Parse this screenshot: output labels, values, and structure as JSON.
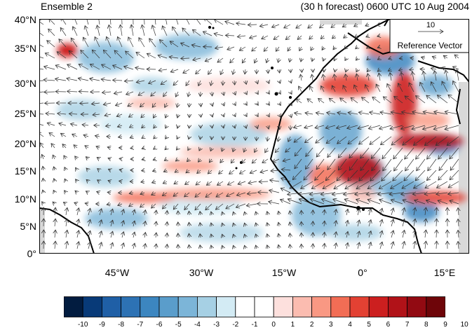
{
  "header": {
    "title_left": "Ensemble 2",
    "title_right": "(30 h forecast) 0600 UTC 10 Aug 2004"
  },
  "axes": {
    "y_ticks": [
      "40°N",
      "35°N",
      "30°N",
      "25°N",
      "20°N",
      "15°N",
      "10°N",
      "5°N",
      "0°"
    ],
    "x_ticks": [
      "45°W",
      "30°W",
      "15°W",
      "0°",
      "15°E"
    ]
  },
  "reference_vector": {
    "value": "10",
    "label": "Reference Vector"
  },
  "colorbar": {
    "labels": [
      "-10",
      "-9",
      "-8",
      "-7",
      "-6",
      "-5",
      "-4",
      "-3",
      "-2",
      "-1",
      "0",
      "1",
      "2",
      "3",
      "4",
      "5",
      "6",
      "7",
      "8",
      "9",
      "10"
    ],
    "colors": [
      "#021c40",
      "#083a78",
      "#1f5fa6",
      "#2d72b4",
      "#3c86c0",
      "#5a9dcb",
      "#7cb5d8",
      "#a6d0e4",
      "#d3ebf4",
      "#ffffff",
      "#ffffff",
      "#fde0dd",
      "#fbbcb0",
      "#f99883",
      "#f26d55",
      "#e34133",
      "#cc1f1f",
      "#b11218",
      "#920a12",
      "#6e0509"
    ]
  },
  "palette": {
    "land": "#d9d9d9",
    "coast": "#000000",
    "arrow": "#333333"
  }
}
